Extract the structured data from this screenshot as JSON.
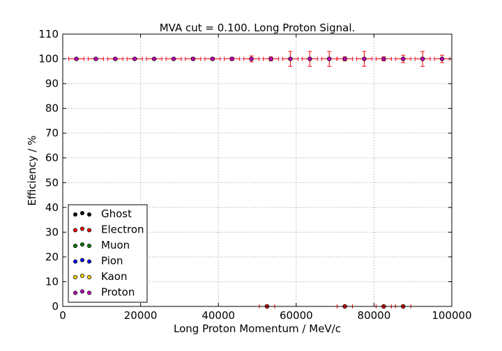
{
  "chart_data": {
    "type": "scatter",
    "title": "MVA cut = 0.100. Long Proton Signal.",
    "xlabel": "Long Proton Momentum / MeV/c",
    "ylabel": "Efficiency / %",
    "xlim": [
      0,
      100000
    ],
    "ylim": [
      0,
      110
    ],
    "xticks": [
      0,
      20000,
      40000,
      60000,
      80000,
      100000
    ],
    "xtick_labels": [
      "0",
      "20000",
      "40000",
      "60000",
      "80000",
      "100000"
    ],
    "yticks": [
      0,
      10,
      20,
      30,
      40,
      50,
      60,
      70,
      80,
      90,
      100,
      110
    ],
    "ytick_labels": [
      "0",
      "10",
      "20",
      "30",
      "40",
      "50",
      "60",
      "70",
      "80",
      "90",
      "100",
      "110"
    ],
    "grid": true,
    "legend_position": "lower-left",
    "reference_line": {
      "y": 100,
      "color": "#9999ff"
    },
    "series": [
      {
        "name": "Ghost",
        "color": "#000000",
        "x": [],
        "y": [],
        "yerr": []
      },
      {
        "name": "Electron",
        "color": "#ff0000",
        "x": [
          52500,
          72500,
          82500,
          87500
        ],
        "y": [
          0,
          0,
          0,
          0
        ],
        "yerr": [
          0,
          0,
          0,
          0
        ]
      },
      {
        "name": "Muon",
        "color": "#008000",
        "x": [],
        "y": [],
        "yerr": []
      },
      {
        "name": "Pion",
        "color": "#0000ff",
        "x": [],
        "y": [],
        "yerr": []
      },
      {
        "name": "Kaon",
        "color": "#ffd700",
        "x": [],
        "y": [],
        "yerr": []
      },
      {
        "name": "Proton",
        "color": "#bf00bf",
        "x": [
          3500,
          8500,
          13500,
          18500,
          23500,
          28500,
          33500,
          38500,
          43500,
          48500,
          53500,
          58500,
          63500,
          68500,
          72500,
          77500,
          82500,
          87500,
          92500,
          97500
        ],
        "y": [
          100,
          100,
          100,
          100,
          100,
          100,
          100,
          100,
          100,
          100,
          100,
          100,
          100,
          100,
          100,
          100,
          100,
          100,
          100,
          100
        ],
        "yerr": [
          0.3,
          0.3,
          0.3,
          0.3,
          0.3,
          0.3,
          0.4,
          0.5,
          0.6,
          1.2,
          0.8,
          3.0,
          3.0,
          3.0,
          0.8,
          3.0,
          0.8,
          1.5,
          3.0,
          1.5
        ]
      }
    ]
  }
}
